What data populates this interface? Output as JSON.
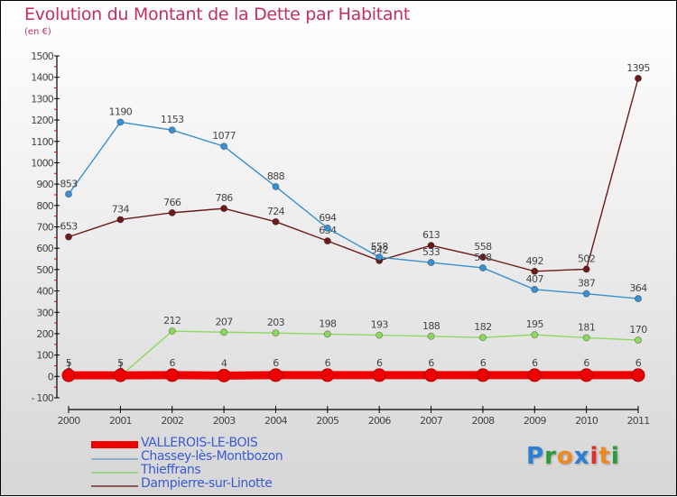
{
  "chart_data": {
    "type": "line",
    "title": "Evolution du Montant de la Dette par Habitant",
    "subtitle": "(en €)",
    "xlabel": "",
    "ylabel": "",
    "x": [
      "2000",
      "2001",
      "2002",
      "2003",
      "2004",
      "2005",
      "2006",
      "2007",
      "2008",
      "2009",
      "2010",
      "2011"
    ],
    "ylim": [
      -100,
      1500
    ],
    "yticks": [
      -100,
      0,
      100,
      200,
      300,
      400,
      500,
      600,
      700,
      800,
      900,
      1000,
      1100,
      1200,
      1300,
      1400,
      1500
    ],
    "ytick_labels": [
      "- 100",
      "0",
      "100",
      "200",
      "300",
      "400",
      "500",
      "600",
      "700",
      "800",
      "900",
      "1000",
      "1100",
      "1200",
      "1300",
      "1400",
      "1500"
    ],
    "grid": false,
    "legend_position": "bottom-left",
    "series": [
      {
        "name": "VALLEROIS-LE-BOIS",
        "color": "#ee0000",
        "values": [
          5,
          5,
          6,
          4,
          6,
          6,
          6,
          6,
          6,
          6,
          6,
          6
        ]
      },
      {
        "name": "Chassey-lès-Montbozon",
        "color": "#3a8fd0",
        "values": [
          853,
          1190,
          1153,
          1077,
          888,
          694,
          558,
          533,
          508,
          407,
          387,
          364
        ]
      },
      {
        "name": "Thieffrans",
        "color": "#8ed860",
        "values": [
          1,
          1,
          212,
          207,
          203,
          198,
          193,
          188,
          182,
          195,
          181,
          170
        ]
      },
      {
        "name": "Dampierre-sur-Linotte",
        "color": "#6b1a1a",
        "values": [
          653,
          734,
          766,
          786,
          724,
          634,
          542,
          613,
          558,
          492,
          502,
          1395
        ]
      }
    ]
  },
  "logo": {
    "letters": [
      {
        "ch": "P",
        "color": "#2a7fd4"
      },
      {
        "ch": "r",
        "color": "#2a9a3a"
      },
      {
        "ch": "o",
        "color": "#f08a20"
      },
      {
        "ch": "x",
        "color": "#2a7fd4"
      },
      {
        "ch": "i",
        "color": "#e03030"
      },
      {
        "ch": "t",
        "color": "#f08a20"
      },
      {
        "ch": "i",
        "color": "#2a9a3a"
      }
    ]
  }
}
